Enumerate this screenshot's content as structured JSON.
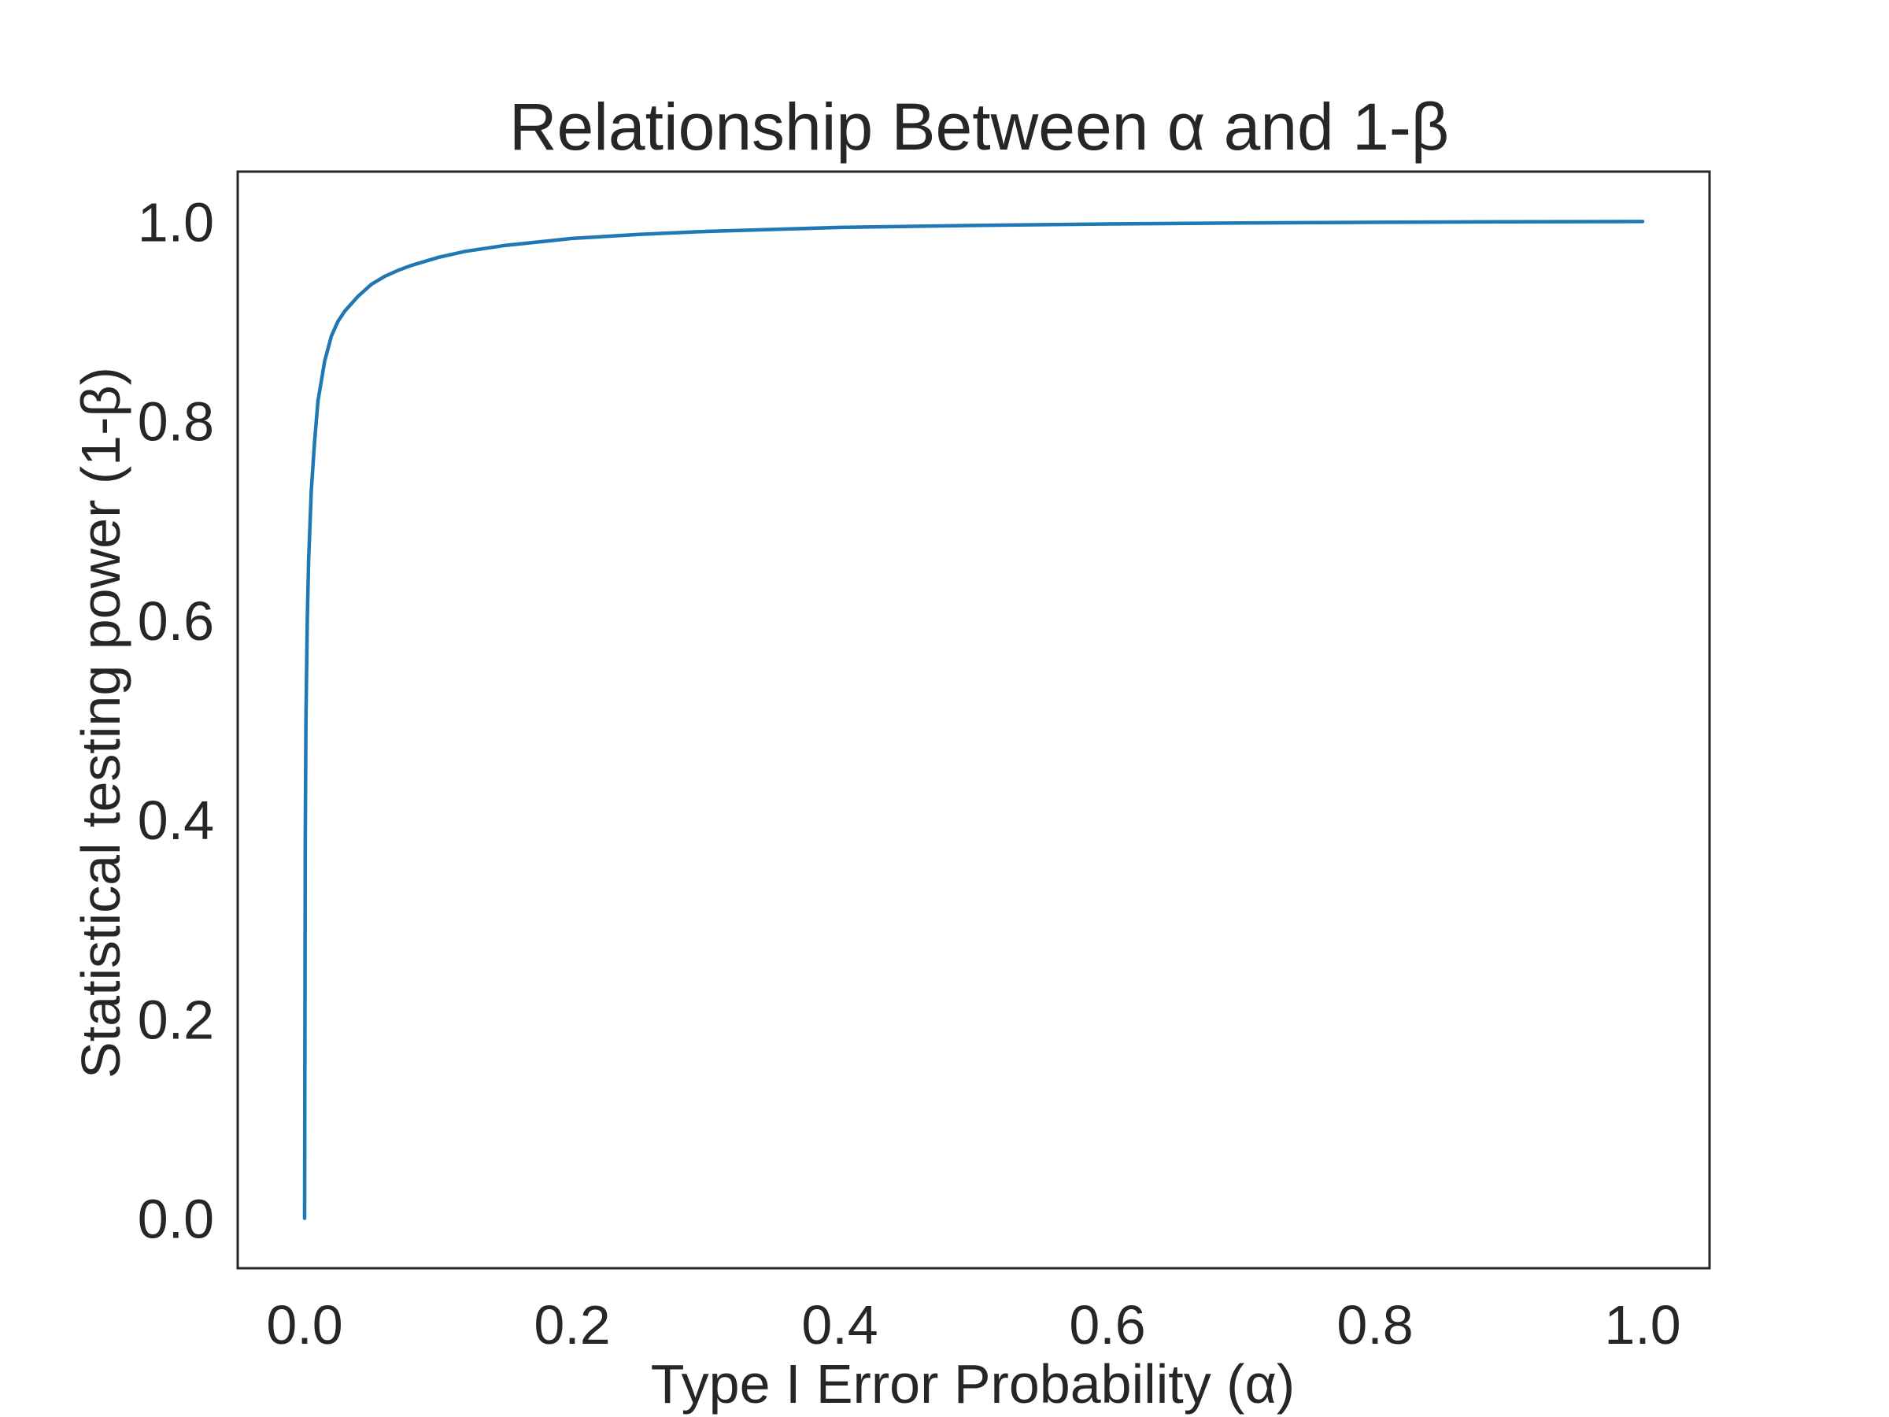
{
  "chart_data": {
    "type": "line",
    "title": "Relationship Between α and 1-β",
    "xlabel": "Type I Error Probability (α)",
    "ylabel": "Statistical testing power (1-β)",
    "xlim": [
      -0.05,
      1.05
    ],
    "ylim": [
      -0.05,
      1.05
    ],
    "xticks": [
      0.0,
      0.2,
      0.4,
      0.6,
      0.8,
      1.0
    ],
    "xtick_labels": [
      "0.0",
      "0.2",
      "0.4",
      "0.6",
      "0.8",
      "1.0"
    ],
    "yticks": [
      0.0,
      0.2,
      0.4,
      0.6,
      0.8,
      1.0
    ],
    "ytick_labels": [
      "0.0",
      "0.2",
      "0.4",
      "0.6",
      "0.8",
      "1.0"
    ],
    "grid": false,
    "legend": "none",
    "series": [
      {
        "color": "#1f77b4",
        "x": [
          0.0,
          0.0005,
          0.001,
          0.002,
          0.003,
          0.005,
          0.0075,
          0.01,
          0.015,
          0.02,
          0.025,
          0.03,
          0.04,
          0.05,
          0.06,
          0.07,
          0.08,
          0.1,
          0.12,
          0.15,
          0.2,
          0.25,
          0.3,
          0.4,
          0.5,
          0.6,
          0.7,
          0.8,
          0.9,
          1.0
        ],
        "y": [
          0.0,
          0.38,
          0.5,
          0.6,
          0.66,
          0.73,
          0.78,
          0.82,
          0.86,
          0.885,
          0.9,
          0.91,
          0.925,
          0.937,
          0.945,
          0.951,
          0.956,
          0.964,
          0.97,
          0.976,
          0.983,
          0.987,
          0.99,
          0.994,
          0.996,
          0.9975,
          0.9985,
          0.9992,
          0.9997,
          1.0
        ]
      }
    ]
  }
}
